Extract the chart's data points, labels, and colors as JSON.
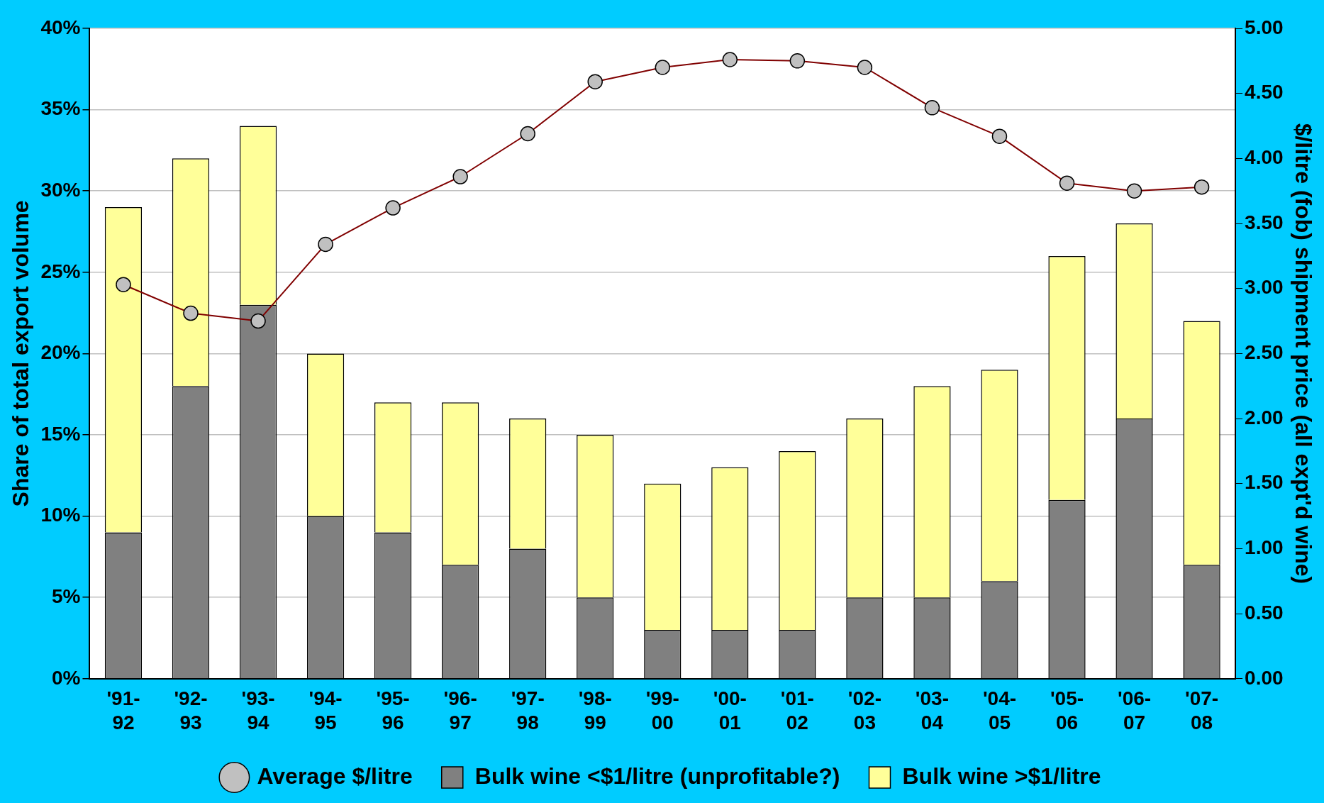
{
  "chart_data": {
    "type": "bar",
    "stacked": true,
    "categories": [
      "'91-92",
      "'92-93",
      "'93-94",
      "'94-95",
      "'95-96",
      "'96-97",
      "'97-98",
      "'98-99",
      "'99-00",
      "'00-01",
      "'01-02",
      "'02-03",
      "'03-04",
      "'04-05",
      "'05-06",
      "'06-07",
      "'07-08"
    ],
    "series": [
      {
        "name": "Bulk wine <$1/litre (unprofitable?)",
        "color": "#808080",
        "values": [
          9,
          18,
          23,
          10,
          9,
          7,
          8,
          5,
          3,
          3,
          3,
          5,
          5,
          6,
          11,
          16,
          7
        ]
      },
      {
        "name": "Bulk wine >$1/litre",
        "color": "#ffff99",
        "values": [
          20,
          14,
          11,
          10,
          8,
          10,
          8,
          10,
          9,
          10,
          11,
          11,
          13,
          13,
          15,
          12,
          15
        ]
      },
      {
        "name": "Average $/litre",
        "type": "line",
        "axis": "y2",
        "color": "#800000",
        "marker": "circle",
        "values": [
          3.03,
          2.81,
          2.75,
          3.34,
          3.62,
          3.86,
          4.19,
          4.59,
          4.7,
          4.76,
          4.75,
          4.7,
          4.39,
          4.17,
          3.81,
          3.75,
          3.78
        ]
      }
    ],
    "ylabel": "Share of total export volume",
    "y2label": "$/litre (fob) shipment price (all expt'd wine)",
    "ylim": [
      0,
      40
    ],
    "yticks": [
      {
        "value": 0,
        "label": "0%"
      },
      {
        "value": 5,
        "label": "5%"
      },
      {
        "value": 10,
        "label": "10%"
      },
      {
        "value": 15,
        "label": "15%"
      },
      {
        "value": 20,
        "label": "20%"
      },
      {
        "value": 25,
        "label": "25%"
      },
      {
        "value": 30,
        "label": "30%"
      },
      {
        "value": 35,
        "label": "35%"
      },
      {
        "value": 40,
        "label": "40%"
      }
    ],
    "y2lim": [
      0,
      5
    ],
    "y2ticks": [
      {
        "value": 0,
        "label": "0.00"
      },
      {
        "value": 0.5,
        "label": "0.50"
      },
      {
        "value": 1,
        "label": "1.00"
      },
      {
        "value": 1.5,
        "label": "1.50"
      },
      {
        "value": 2,
        "label": "2.00"
      },
      {
        "value": 2.5,
        "label": "2.50"
      },
      {
        "value": 3,
        "label": "3.00"
      },
      {
        "value": 3.5,
        "label": "3.50"
      },
      {
        "value": 4,
        "label": "4.00"
      },
      {
        "value": 4.5,
        "label": "4.50"
      },
      {
        "value": 5,
        "label": "5.00"
      }
    ],
    "grid": "y",
    "legend": "bottom"
  }
}
